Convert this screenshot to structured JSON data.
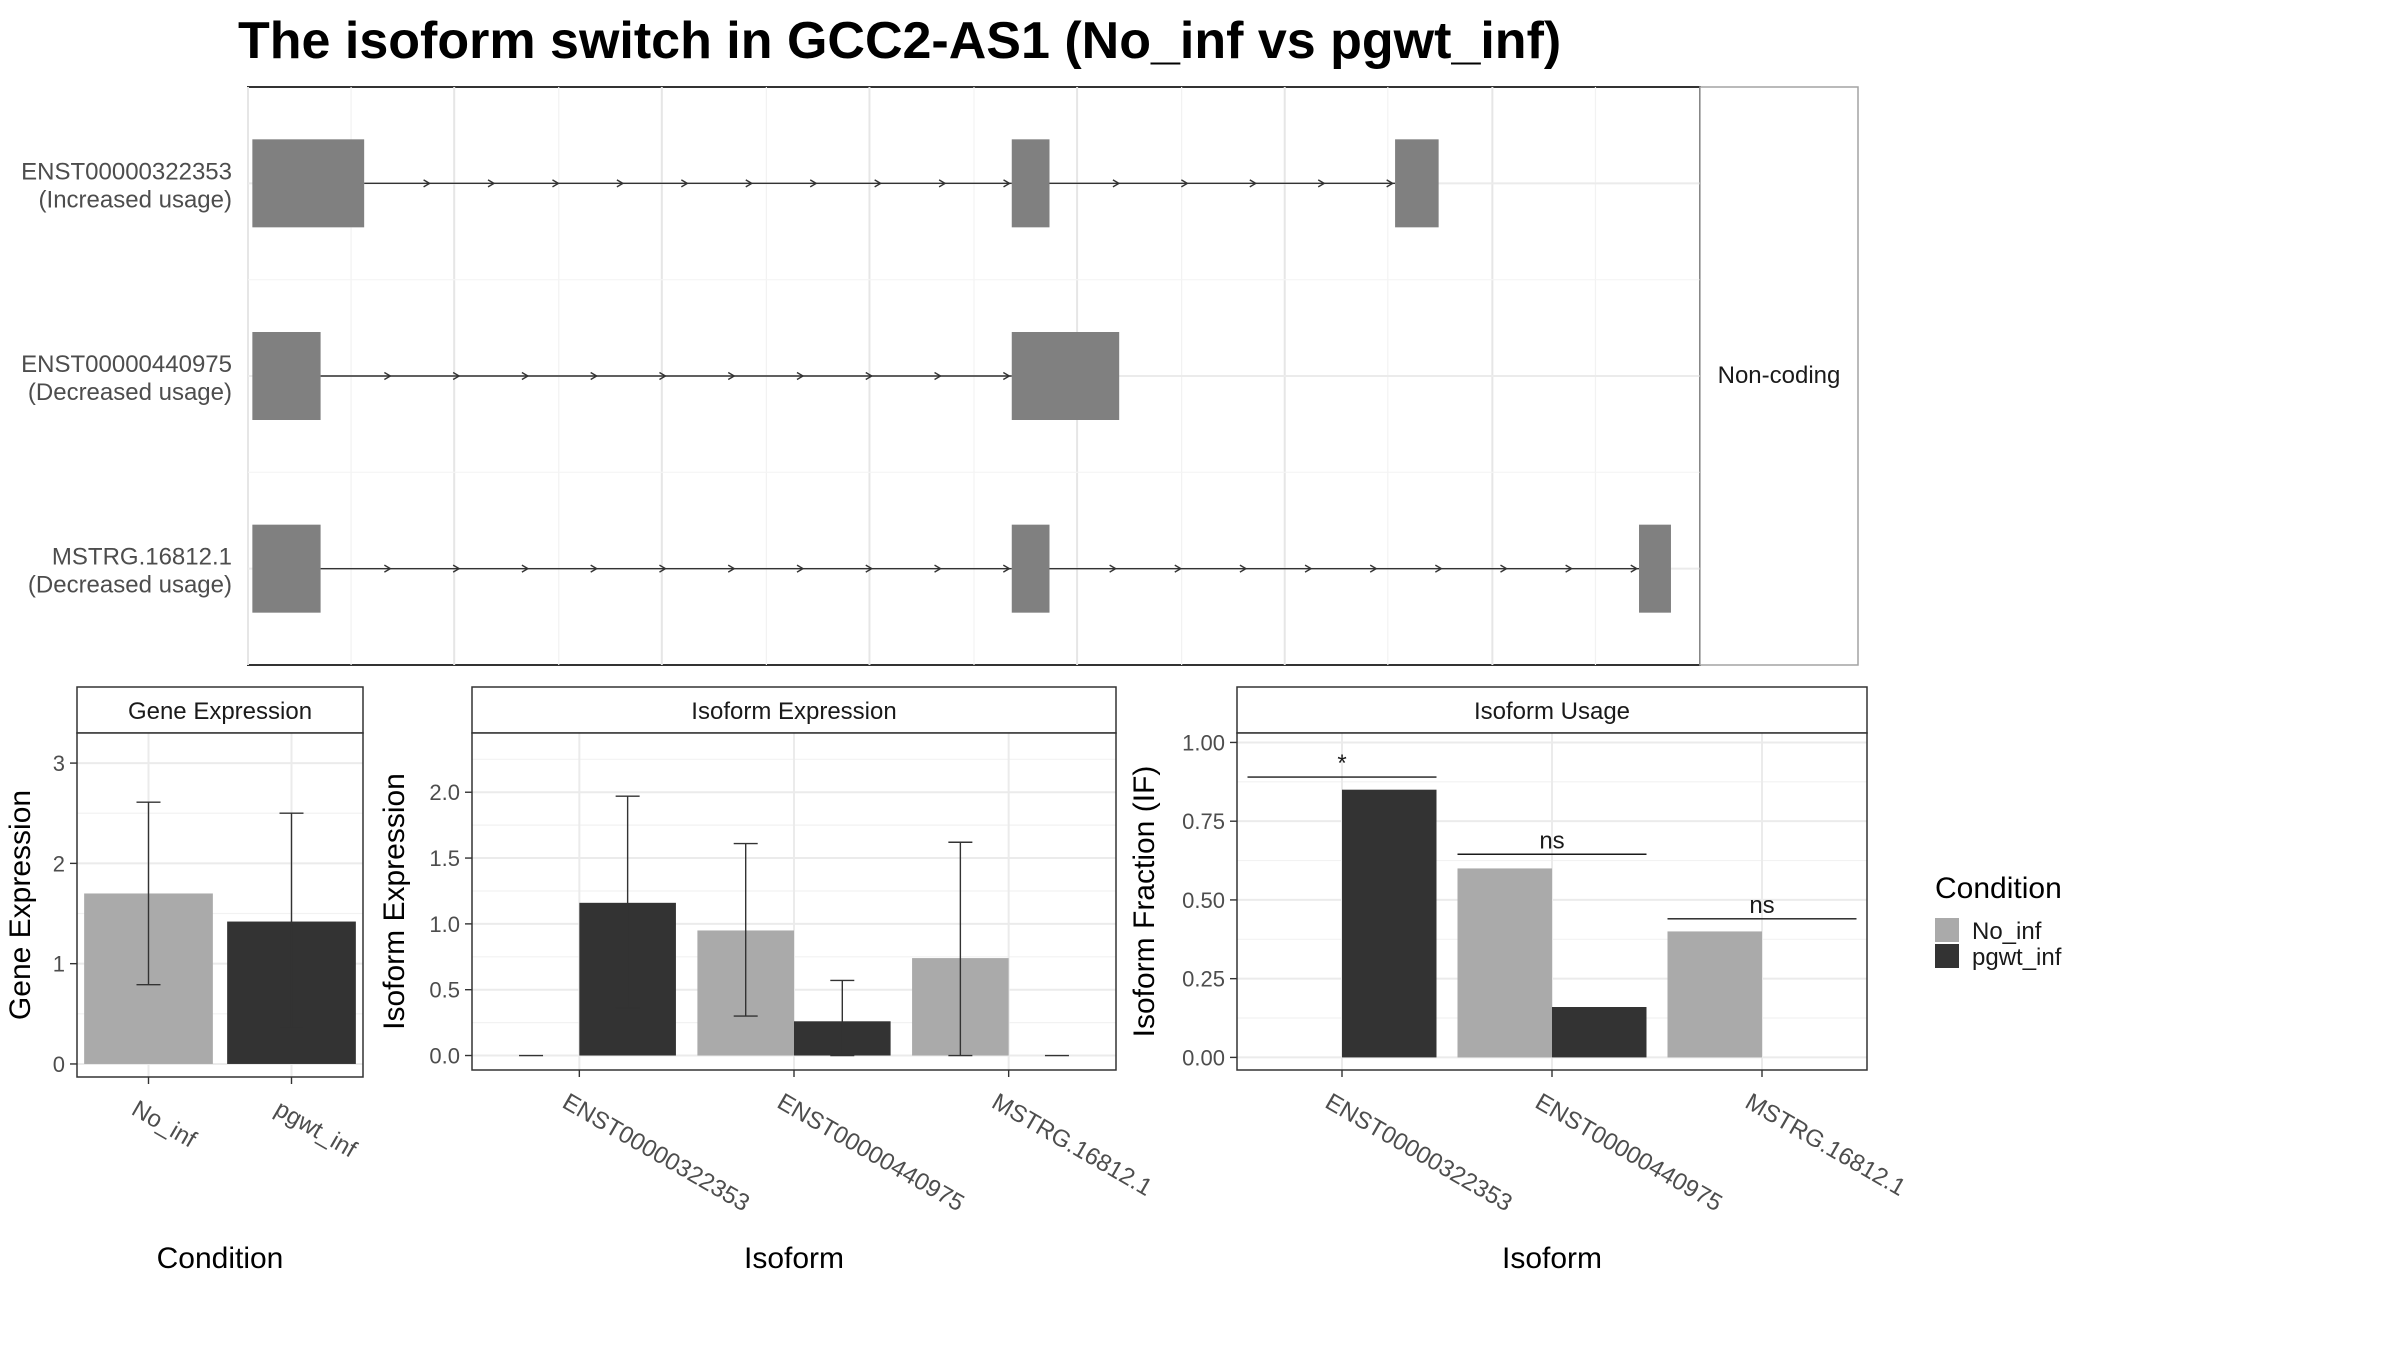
{
  "title": "The isoform switch in GCC2-AS1 (No_inf vs pgwt_inf)",
  "colors": {
    "No_inf": "#aaaaaa",
    "pgwt_inf": "#333333",
    "exon": "#808080",
    "grid": "#ebebeb",
    "strip": "#ffffff"
  },
  "chart_data": [
    {
      "type": "gene-structure",
      "panel_label": "Non-coding",
      "transcripts": [
        {
          "id": "ENST00000322353",
          "status": "(Increased usage)",
          "exons": [
            [
              0.3,
              8.0
            ],
            [
              52.6,
              55.2
            ],
            [
              79.0,
              82.0
            ]
          ]
        },
        {
          "id": "ENST00000440975",
          "status": "(Decreased usage)",
          "exons": [
            [
              0.3,
              5.0
            ],
            [
              52.6,
              60.0
            ]
          ]
        },
        {
          "id": "MSTRG.16812.1",
          "status": "(Decreased usage)",
          "exons": [
            [
              0.3,
              5.0
            ],
            [
              52.6,
              55.2
            ],
            [
              95.8,
              98.0
            ]
          ]
        }
      ],
      "xlim": [
        0,
        100
      ]
    },
    {
      "type": "bar",
      "strip": "Gene Expression",
      "xlabel": "Condition",
      "ylabel": "Gene Expression",
      "categories": [
        "No_inf",
        "pgwt_inf"
      ],
      "values": [
        1.7,
        1.42
      ],
      "error_low": [
        0.79,
        0.36
      ],
      "error_high": [
        2.61,
        2.5
      ],
      "fill": [
        "No_inf",
        "pgwt_inf"
      ],
      "ylim": [
        -0.13,
        3.3
      ],
      "yticks": [
        0,
        1,
        2,
        3
      ],
      "ytick_labels": [
        "0",
        "1",
        "2",
        "3"
      ]
    },
    {
      "type": "bar",
      "strip": "Isoform Expression",
      "xlabel": "Isoform",
      "ylabel": "Isoform Expression",
      "categories": [
        "ENST00000322353",
        "ENST00000440975",
        "MSTRG.16812.1"
      ],
      "series": [
        {
          "name": "No_inf",
          "values": [
            0.0,
            0.95,
            0.74
          ],
          "error_low": [
            0.0,
            0.3,
            0.0
          ],
          "error_high": [
            0.0,
            1.61,
            1.62
          ]
        },
        {
          "name": "pgwt_inf",
          "values": [
            1.16,
            0.26,
            0.0
          ],
          "error_low": [
            0.36,
            0.0,
            0.0
          ],
          "error_high": [
            1.97,
            0.57,
            0.0
          ]
        }
      ],
      "ylim": [
        -0.11,
        2.45
      ],
      "yticks": [
        0,
        0.5,
        1.0,
        1.5,
        2.0
      ],
      "ytick_labels": [
        "0.0",
        "0.5",
        "1.0",
        "1.5",
        "2.0"
      ]
    },
    {
      "type": "bar",
      "strip": "Isoform Usage",
      "xlabel": "Isoform",
      "ylabel": "Isoform Fraction (IF)",
      "categories": [
        "ENST00000322353",
        "ENST00000440975",
        "MSTRG.16812.1"
      ],
      "series": [
        {
          "name": "No_inf",
          "values": [
            0.0,
            0.6,
            0.4
          ]
        },
        {
          "name": "pgwt_inf",
          "values": [
            0.85,
            0.16,
            0.0
          ]
        }
      ],
      "significance": [
        {
          "category": "ENST00000322353",
          "label": "*",
          "y": 0.89
        },
        {
          "category": "ENST00000440975",
          "label": "ns",
          "y": 0.645
        },
        {
          "category": "MSTRG.16812.1",
          "label": "ns",
          "y": 0.44
        }
      ],
      "ylim": [
        -0.04,
        1.03
      ],
      "yticks": [
        0,
        0.25,
        0.5,
        0.75,
        1.0
      ],
      "ytick_labels": [
        "0.00",
        "0.25",
        "0.50",
        "0.75",
        "1.00"
      ]
    }
  ],
  "legend": {
    "title": "Condition",
    "position": "right",
    "items": [
      {
        "label": "No_inf",
        "key": "No_inf"
      },
      {
        "label": "pgwt_inf",
        "key": "pgwt_inf"
      }
    ]
  }
}
